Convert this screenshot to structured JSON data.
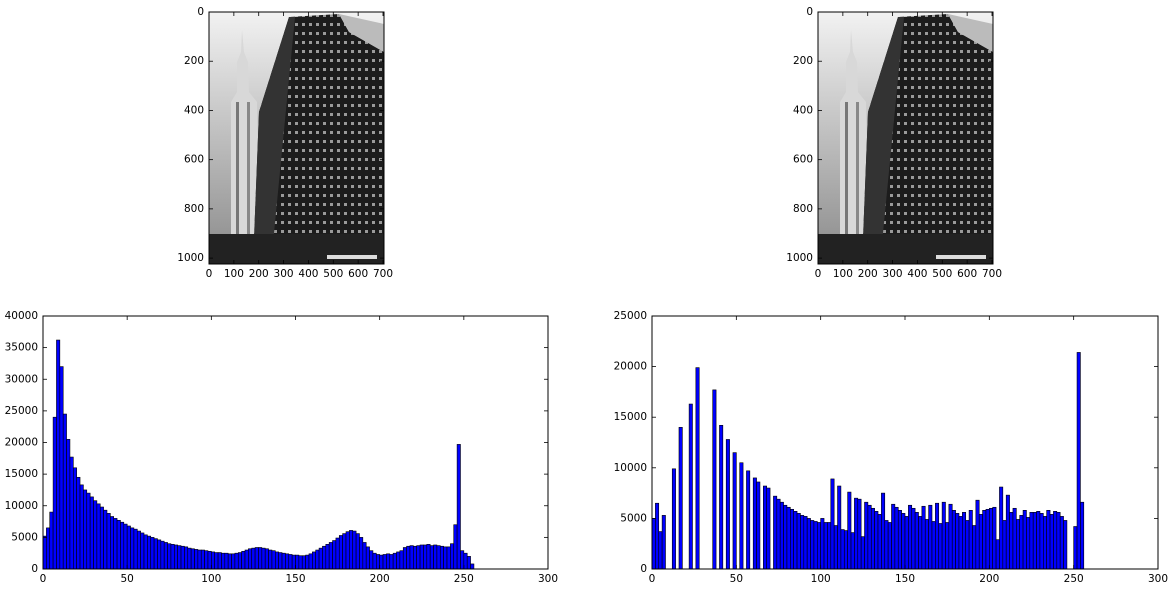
{
  "chart_data": [
    {
      "type": "image",
      "xlim": [
        0,
        704
      ],
      "ylim": [
        0,
        1024
      ],
      "y_inverted": true,
      "xticks": [
        0,
        100,
        200,
        300,
        400,
        500,
        600,
        700
      ],
      "yticks": [
        0,
        200,
        400,
        600,
        800,
        1000
      ]
    },
    {
      "type": "image",
      "xlim": [
        0,
        704
      ],
      "ylim": [
        0,
        1024
      ],
      "y_inverted": true,
      "xticks": [
        0,
        100,
        200,
        300,
        400,
        500,
        600,
        700
      ],
      "yticks": [
        0,
        200,
        400,
        600,
        800,
        1000
      ]
    },
    {
      "type": "histogram",
      "color": "#0000ff",
      "edgecolor": "#000000",
      "xlim": [
        0,
        300
      ],
      "ylim": [
        0,
        40000
      ],
      "xticks": [
        0,
        50,
        100,
        150,
        200,
        250,
        300
      ],
      "yticks": [
        0,
        5000,
        10000,
        15000,
        20000,
        25000,
        30000,
        35000,
        40000
      ],
      "bins": [
        0,
        2,
        4,
        6,
        8,
        10,
        12,
        14,
        16,
        18,
        20,
        22,
        24,
        26,
        28,
        30,
        32,
        34,
        36,
        38,
        40,
        42,
        44,
        46,
        48,
        50,
        52,
        54,
        56,
        58,
        60,
        62,
        64,
        66,
        68,
        70,
        72,
        74,
        76,
        78,
        80,
        82,
        84,
        86,
        88,
        90,
        92,
        94,
        96,
        98,
        100,
        102,
        104,
        106,
        108,
        110,
        112,
        114,
        116,
        118,
        120,
        122,
        124,
        126,
        128,
        130,
        132,
        134,
        136,
        138,
        140,
        142,
        144,
        146,
        148,
        150,
        152,
        154,
        156,
        158,
        160,
        162,
        164,
        166,
        168,
        170,
        172,
        174,
        176,
        178,
        180,
        182,
        184,
        186,
        188,
        190,
        192,
        194,
        196,
        198,
        200,
        202,
        204,
        206,
        208,
        210,
        212,
        214,
        216,
        218,
        220,
        222,
        224,
        226,
        228,
        230,
        232,
        234,
        236,
        238,
        240,
        242,
        244,
        246,
        248,
        250,
        252,
        254,
        256
      ],
      "values": [
        5200,
        6500,
        9000,
        24000,
        36200,
        32000,
        24500,
        20500,
        17700,
        16000,
        14500,
        13300,
        12500,
        12000,
        11400,
        10800,
        10300,
        9800,
        9300,
        8800,
        8300,
        8000,
        7700,
        7400,
        7100,
        6800,
        6500,
        6300,
        6000,
        5700,
        5400,
        5200,
        5000,
        4800,
        4600,
        4400,
        4200,
        4000,
        3900,
        3800,
        3700,
        3600,
        3500,
        3300,
        3200,
        3100,
        3000,
        3000,
        2900,
        2800,
        2700,
        2600,
        2600,
        2500,
        2500,
        2400,
        2400,
        2500,
        2600,
        2800,
        3000,
        3200,
        3300,
        3400,
        3400,
        3300,
        3200,
        3000,
        2900,
        2700,
        2600,
        2500,
        2400,
        2300,
        2200,
        2200,
        2100,
        2100,
        2200,
        2400,
        2700,
        3000,
        3300,
        3600,
        3900,
        4200,
        4500,
        4900,
        5300,
        5600,
        5900,
        6100,
        6000,
        5600,
        5000,
        4200,
        3500,
        2900,
        2500,
        2300,
        2200,
        2300,
        2400,
        2300,
        2500,
        2700,
        2900,
        3400,
        3600,
        3700,
        3600,
        3700,
        3800,
        3800,
        3900,
        3700,
        3800,
        3700,
        3600,
        3500,
        3500,
        4000,
        7000,
        19700,
        2900,
        2500,
        2000,
        800
      ]
    },
    {
      "type": "histogram",
      "color": "#0000ff",
      "edgecolor": "#000000",
      "xlim": [
        0,
        300
      ],
      "ylim": [
        0,
        25000
      ],
      "xticks": [
        0,
        50,
        100,
        150,
        200,
        250,
        300
      ],
      "yticks": [
        0,
        5000,
        10000,
        15000,
        20000,
        25000
      ],
      "bins": [
        0,
        2,
        4,
        6,
        8,
        10,
        12,
        14,
        16,
        18,
        20,
        22,
        24,
        26,
        28,
        30,
        32,
        34,
        36,
        38,
        40,
        42,
        44,
        46,
        48,
        50,
        52,
        54,
        56,
        58,
        60,
        62,
        64,
        66,
        68,
        70,
        72,
        74,
        76,
        78,
        80,
        82,
        84,
        86,
        88,
        90,
        92,
        94,
        96,
        98,
        100,
        102,
        104,
        106,
        108,
        110,
        112,
        114,
        116,
        118,
        120,
        122,
        124,
        126,
        128,
        130,
        132,
        134,
        136,
        138,
        140,
        142,
        144,
        146,
        148,
        150,
        152,
        154,
        156,
        158,
        160,
        162,
        164,
        166,
        168,
        170,
        172,
        174,
        176,
        178,
        180,
        182,
        184,
        186,
        188,
        190,
        192,
        194,
        196,
        198,
        200,
        202,
        204,
        206,
        208,
        210,
        212,
        214,
        216,
        218,
        220,
        222,
        224,
        226,
        228,
        230,
        232,
        234,
        236,
        238,
        240,
        242,
        244,
        246,
        248,
        250,
        252,
        254,
        256
      ],
      "values": [
        5000,
        6500,
        3700,
        5300,
        0,
        0,
        9900,
        0,
        14000,
        0,
        0,
        16300,
        0,
        19900,
        0,
        0,
        0,
        0,
        17700,
        0,
        14200,
        0,
        12800,
        0,
        11500,
        0,
        10500,
        0,
        9700,
        0,
        9000,
        8600,
        0,
        8200,
        8000,
        0,
        7200,
        6900,
        6600,
        6300,
        6100,
        5900,
        5700,
        5500,
        5300,
        5200,
        5000,
        4800,
        4700,
        4600,
        5000,
        4600,
        4600,
        8900,
        4300,
        8200,
        3900,
        3800,
        7600,
        3600,
        7000,
        6900,
        3200,
        6600,
        6300,
        6000,
        5700,
        5400,
        7500,
        4800,
        4600,
        6400,
        6100,
        5800,
        5500,
        5200,
        6300,
        6000,
        5600,
        5200,
        6200,
        4900,
        6300,
        4700,
        6500,
        4500,
        6600,
        4600,
        6400,
        5800,
        5500,
        5200,
        5600,
        4800,
        5800,
        4300,
        6800,
        5400,
        5800,
        5900,
        6000,
        6100,
        2900,
        8100,
        4800,
        7300,
        5600,
        6000,
        4900,
        5300,
        5800,
        5100,
        5600,
        5600,
        5700,
        5500,
        5200,
        5800,
        5400,
        5700,
        5600,
        5200,
        4800,
        0,
        0,
        4200,
        21400,
        6600
      ]
    }
  ]
}
